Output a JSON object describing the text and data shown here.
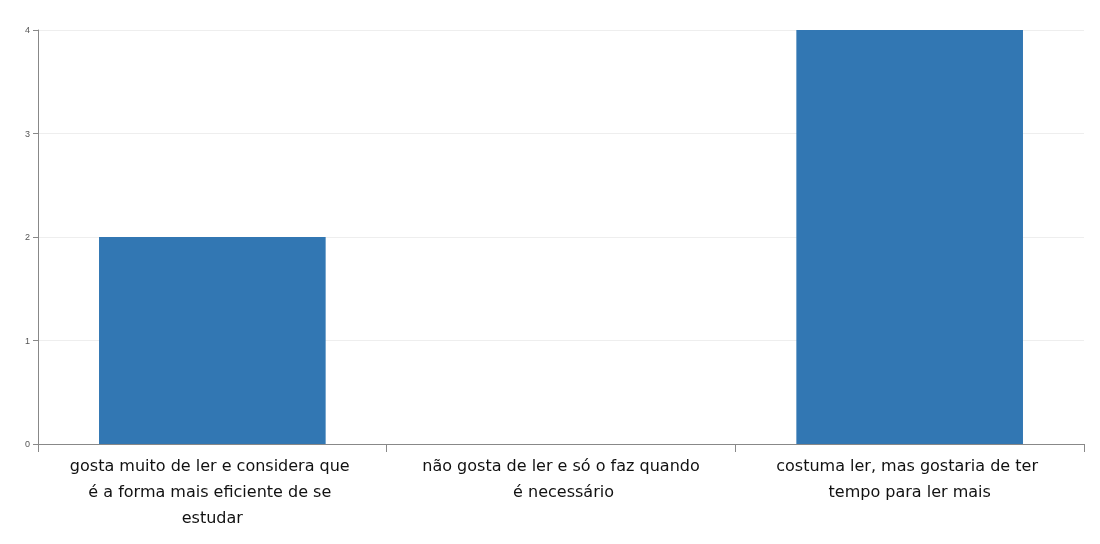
{
  "chart_data": {
    "type": "bar",
    "categories": [
      "gosta muito de ler e considera que é a forma mais eficiente de se estudar",
      "não gosta de ler e só o faz quando é necessário",
      "costuma ler, mas gostaria de ter tempo para ler mais"
    ],
    "values": [
      2,
      0,
      4
    ],
    "color": "#3277b3",
    "ylim": [
      0,
      4
    ],
    "yticks": [
      0,
      1,
      2,
      3,
      4
    ],
    "grid": "y"
  }
}
